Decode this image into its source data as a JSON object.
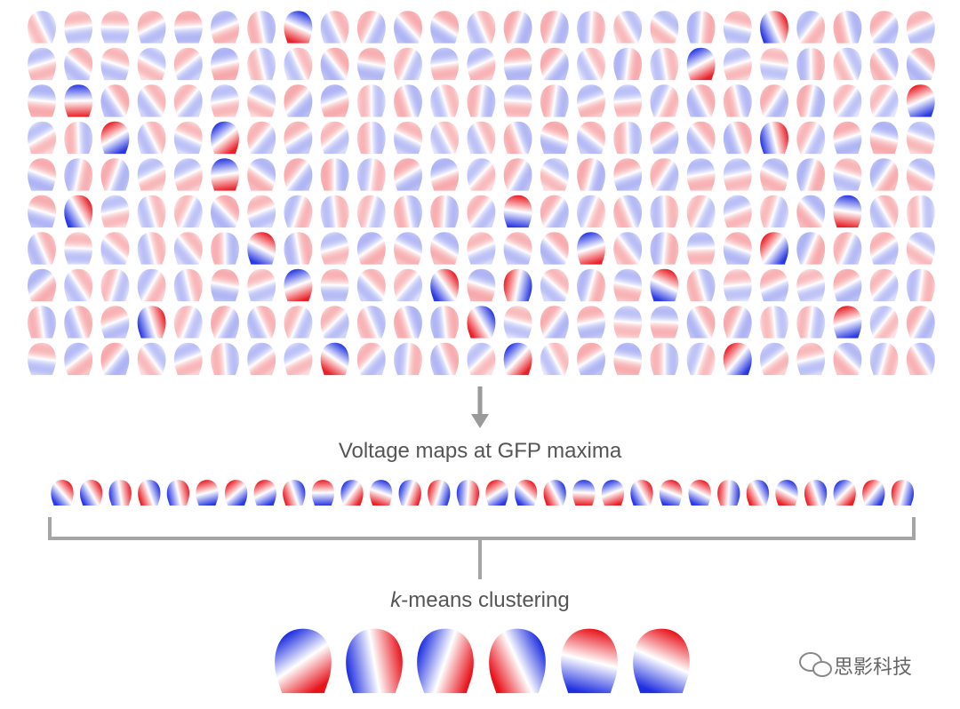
{
  "arrow_label": "Voltage maps at GFP maxima",
  "clustering_label": {
    "italic": "k",
    "rest": "-means clustering"
  },
  "watermark": "思影科技"
}
